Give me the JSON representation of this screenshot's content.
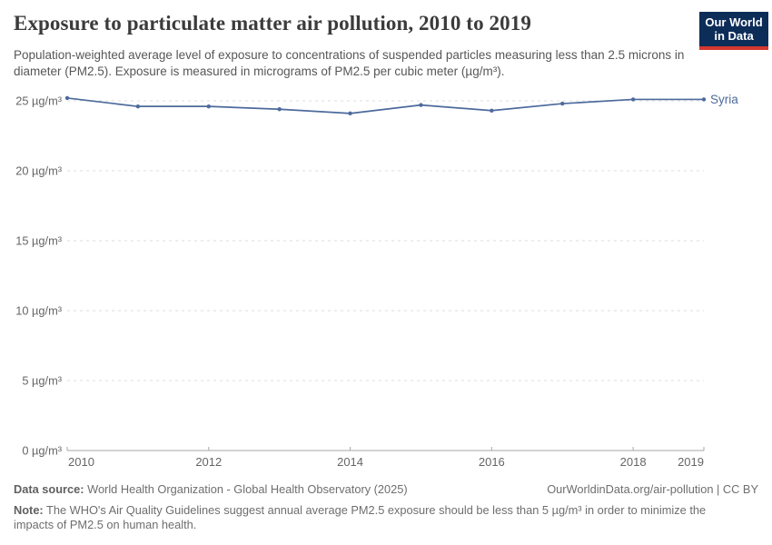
{
  "header": {
    "title": "Exposure to particulate matter air pollution, 2010 to 2019",
    "subtitle": "Population-weighted average level of exposure to concentrations of suspended particles measuring less than 2.5 microns in diameter (PM2.5). Exposure is measured in micrograms of PM2.5 per cubic meter (µg/m³).",
    "logo": {
      "line1": "Our World",
      "line2": "in Data",
      "bg_color": "#0d2d59",
      "accent_color": "#d4382e"
    }
  },
  "chart_data": {
    "type": "line",
    "title": "Exposure to particulate matter air pollution, 2010 to 2019",
    "x": [
      2010,
      2011,
      2012,
      2013,
      2014,
      2015,
      2016,
      2017,
      2018,
      2019
    ],
    "series": [
      {
        "name": "Syria",
        "color": "#4c6a9c",
        "values": [
          25.2,
          24.6,
          24.6,
          24.4,
          24.1,
          24.7,
          24.3,
          24.8,
          25.1,
          25.1
        ]
      }
    ],
    "ylim": [
      0,
      25
    ],
    "yticks": [
      0,
      5,
      10,
      15,
      20,
      25
    ],
    "ytick_suffix": " µg/m³",
    "xticks": [
      2010,
      2012,
      2014,
      2016,
      2018,
      2019
    ],
    "xlabel": "",
    "ylabel": "",
    "grid": "horizontal-dashed",
    "legend_position": "end-of-line",
    "colors": {
      "gridline": "#dcdcdc",
      "axis": "#a7a7a7",
      "tick_label": "#666666"
    }
  },
  "footer": {
    "data_source_label": "Data source:",
    "data_source": "World Health Organization - Global Health Observatory (2025)",
    "link": "OurWorldinData.org/air-pollution | CC BY",
    "note_label": "Note:",
    "note": "The WHO's Air Quality Guidelines suggest annual average PM2.5 exposure should be less than 5 µg/m³ in order to minimize the impacts of PM2.5 on human health."
  }
}
